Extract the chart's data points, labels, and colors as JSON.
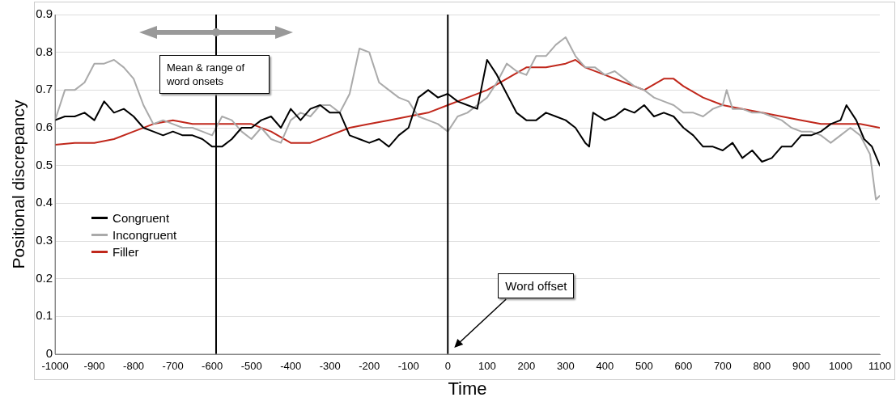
{
  "chart_data": {
    "type": "line",
    "xlabel": "Time",
    "ylabel": "Positional discrepancy",
    "xlim": [
      -1000,
      1100
    ],
    "xticks": [
      -1000,
      -900,
      -800,
      -700,
      -600,
      -500,
      -400,
      -300,
      -200,
      -100,
      0,
      100,
      200,
      300,
      400,
      500,
      600,
      700,
      800,
      900,
      1000,
      1100
    ],
    "ylim": [
      0,
      0.9
    ],
    "yticks": [
      0,
      0.1,
      0.2,
      0.3,
      0.4,
      0.5,
      0.6,
      0.7,
      0.8,
      0.9
    ],
    "grid": "y",
    "legend": "left",
    "marker": "none",
    "line_style": "solid",
    "ref_lines": [
      {
        "axis": "x",
        "value": -590,
        "color": "#000000"
      },
      {
        "axis": "x",
        "value": 0,
        "color": "#000000"
      }
    ],
    "annotations": [
      "Mean & range of word onsets",
      "Word offset"
    ],
    "series": [
      {
        "name": "Congruent",
        "color": "#000000",
        "x": [
          -1000,
          -975,
          -950,
          -925,
          -900,
          -875,
          -850,
          -825,
          -800,
          -775,
          -750,
          -725,
          -700,
          -675,
          -650,
          -625,
          -600,
          -575,
          -550,
          -525,
          -500,
          -475,
          -450,
          -425,
          -400,
          -375,
          -350,
          -325,
          -300,
          -275,
          -250,
          -225,
          -200,
          -175,
          -150,
          -125,
          -100,
          -75,
          -50,
          -25,
          0,
          25,
          50,
          75,
          100,
          125,
          150,
          175,
          200,
          225,
          250,
          275,
          300,
          325,
          350,
          360,
          370,
          400,
          425,
          450,
          475,
          500,
          525,
          550,
          575,
          600,
          625,
          650,
          675,
          700,
          725,
          750,
          775,
          800,
          825,
          850,
          875,
          900,
          925,
          950,
          975,
          1000,
          1015,
          1040,
          1060,
          1080,
          1100
        ],
        "values": [
          0.62,
          0.63,
          0.63,
          0.64,
          0.62,
          0.67,
          0.64,
          0.65,
          0.63,
          0.6,
          0.59,
          0.58,
          0.59,
          0.58,
          0.58,
          0.57,
          0.55,
          0.55,
          0.57,
          0.6,
          0.6,
          0.62,
          0.63,
          0.6,
          0.65,
          0.62,
          0.65,
          0.66,
          0.64,
          0.64,
          0.58,
          0.57,
          0.56,
          0.57,
          0.55,
          0.58,
          0.6,
          0.68,
          0.7,
          0.68,
          0.69,
          0.67,
          0.66,
          0.65,
          0.78,
          0.74,
          0.69,
          0.64,
          0.62,
          0.62,
          0.64,
          0.63,
          0.62,
          0.6,
          0.56,
          0.55,
          0.64,
          0.62,
          0.63,
          0.65,
          0.64,
          0.66,
          0.63,
          0.64,
          0.63,
          0.6,
          0.58,
          0.55,
          0.55,
          0.54,
          0.56,
          0.52,
          0.54,
          0.51,
          0.52,
          0.55,
          0.55,
          0.58,
          0.58,
          0.59,
          0.61,
          0.62,
          0.66,
          0.62,
          0.57,
          0.55,
          0.5
        ]
      },
      {
        "name": "Incongruent",
        "color": "#aaaaaa",
        "x": [
          -1000,
          -975,
          -950,
          -925,
          -900,
          -875,
          -850,
          -825,
          -800,
          -775,
          -750,
          -725,
          -700,
          -675,
          -650,
          -625,
          -600,
          -575,
          -550,
          -525,
          -500,
          -475,
          -450,
          -425,
          -400,
          -375,
          -350,
          -325,
          -300,
          -275,
          -250,
          -225,
          -200,
          -175,
          -150,
          -125,
          -100,
          -75,
          -50,
          -25,
          0,
          25,
          50,
          75,
          100,
          125,
          150,
          175,
          200,
          225,
          250,
          275,
          300,
          325,
          350,
          375,
          400,
          425,
          450,
          475,
          500,
          525,
          550,
          575,
          600,
          625,
          650,
          675,
          700,
          710,
          725,
          750,
          775,
          800,
          825,
          850,
          875,
          900,
          925,
          950,
          975,
          1000,
          1025,
          1050,
          1075,
          1090,
          1100
        ],
        "values": [
          0.62,
          0.7,
          0.7,
          0.72,
          0.77,
          0.77,
          0.78,
          0.76,
          0.73,
          0.66,
          0.61,
          0.62,
          0.61,
          0.6,
          0.6,
          0.59,
          0.58,
          0.63,
          0.62,
          0.59,
          0.57,
          0.6,
          0.57,
          0.56,
          0.62,
          0.64,
          0.63,
          0.66,
          0.66,
          0.64,
          0.69,
          0.81,
          0.8,
          0.72,
          0.7,
          0.68,
          0.67,
          0.63,
          0.62,
          0.61,
          0.59,
          0.63,
          0.64,
          0.66,
          0.68,
          0.72,
          0.77,
          0.75,
          0.74,
          0.79,
          0.79,
          0.82,
          0.84,
          0.79,
          0.76,
          0.76,
          0.74,
          0.75,
          0.73,
          0.71,
          0.7,
          0.68,
          0.67,
          0.66,
          0.64,
          0.64,
          0.63,
          0.65,
          0.66,
          0.7,
          0.65,
          0.65,
          0.64,
          0.64,
          0.63,
          0.62,
          0.6,
          0.59,
          0.59,
          0.58,
          0.56,
          0.58,
          0.6,
          0.58,
          0.53,
          0.41,
          0.42
        ]
      },
      {
        "name": "Filler",
        "color": "#c0281c",
        "x": [
          -1000,
          -950,
          -900,
          -850,
          -800,
          -750,
          -700,
          -650,
          -600,
          -550,
          -500,
          -450,
          -400,
          -350,
          -300,
          -250,
          -200,
          -150,
          -100,
          -50,
          0,
          50,
          100,
          150,
          200,
          250,
          300,
          325,
          350,
          400,
          450,
          500,
          550,
          575,
          600,
          650,
          700,
          750,
          800,
          850,
          900,
          950,
          1000,
          1050,
          1100
        ],
        "values": [
          0.555,
          0.56,
          0.56,
          0.57,
          0.59,
          0.61,
          0.62,
          0.61,
          0.61,
          0.61,
          0.61,
          0.59,
          0.56,
          0.56,
          0.58,
          0.6,
          0.61,
          0.62,
          0.63,
          0.64,
          0.66,
          0.68,
          0.7,
          0.73,
          0.76,
          0.76,
          0.77,
          0.78,
          0.76,
          0.74,
          0.72,
          0.7,
          0.73,
          0.73,
          0.71,
          0.68,
          0.66,
          0.65,
          0.64,
          0.63,
          0.62,
          0.61,
          0.61,
          0.61,
          0.6
        ]
      }
    ]
  }
}
